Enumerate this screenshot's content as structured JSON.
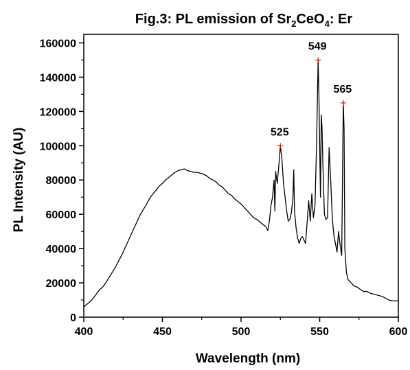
{
  "chart_data": {
    "type": "line",
    "title": {
      "prefix": "Fig.3: PL emission of Sr",
      "sub1": "2",
      "mid": "CeO",
      "sub2": "4",
      "suffix": ": Er"
    },
    "xlabel": "Wavelength (nm)",
    "ylabel": "PL Intensity (AU)",
    "xlim": [
      400,
      600
    ],
    "ylim": [
      0,
      165000
    ],
    "x_ticks": [
      400,
      450,
      500,
      550,
      600
    ],
    "y_ticks": [
      0,
      20000,
      40000,
      60000,
      80000,
      100000,
      120000,
      140000,
      160000
    ],
    "grid": false,
    "series": [
      {
        "color": "#000000",
        "points": [
          [
            400,
            6000
          ],
          [
            402,
            7500
          ],
          [
            404,
            9000
          ],
          [
            406,
            11000
          ],
          [
            408,
            13500
          ],
          [
            410,
            16000
          ],
          [
            412,
            17500
          ],
          [
            414,
            20000
          ],
          [
            416,
            23000
          ],
          [
            418,
            26000
          ],
          [
            420,
            29000
          ],
          [
            422,
            32500
          ],
          [
            424,
            36000
          ],
          [
            426,
            40000
          ],
          [
            428,
            44000
          ],
          [
            430,
            48000
          ],
          [
            432,
            52000
          ],
          [
            434,
            56000
          ],
          [
            436,
            60000
          ],
          [
            438,
            63000
          ],
          [
            440,
            66000
          ],
          [
            442,
            69500
          ],
          [
            444,
            72000
          ],
          [
            446,
            74000
          ],
          [
            448,
            76500
          ],
          [
            450,
            78000
          ],
          [
            452,
            80000
          ],
          [
            454,
            81500
          ],
          [
            456,
            83000
          ],
          [
            458,
            84500
          ],
          [
            460,
            85500
          ],
          [
            462,
            86000
          ],
          [
            464,
            86500
          ],
          [
            466,
            85500
          ],
          [
            468,
            85000
          ],
          [
            470,
            84500
          ],
          [
            472,
            84500
          ],
          [
            474,
            84000
          ],
          [
            476,
            83500
          ],
          [
            478,
            82500
          ],
          [
            480,
            81000
          ],
          [
            482,
            80000
          ],
          [
            484,
            79000
          ],
          [
            486,
            77000
          ],
          [
            488,
            76000
          ],
          [
            490,
            74000
          ],
          [
            492,
            72000
          ],
          [
            494,
            71000
          ],
          [
            496,
            69000
          ],
          [
            498,
            67500
          ],
          [
            500,
            66000
          ],
          [
            502,
            64000
          ],
          [
            504,
            62000
          ],
          [
            506,
            60000
          ],
          [
            508,
            58000
          ],
          [
            510,
            57000
          ],
          [
            512,
            55500
          ],
          [
            514,
            54000
          ],
          [
            516,
            52500
          ],
          [
            517,
            50500
          ],
          [
            518,
            56000
          ],
          [
            519,
            65000
          ],
          [
            520,
            70000
          ],
          [
            521,
            80000
          ],
          [
            521.5,
            62000
          ],
          [
            522,
            85000
          ],
          [
            523,
            78000
          ],
          [
            524,
            88000
          ],
          [
            525,
            100000
          ],
          [
            526,
            92000
          ],
          [
            527,
            78000
          ],
          [
            528,
            70000
          ],
          [
            529,
            62000
          ],
          [
            530,
            56000
          ],
          [
            531,
            57000
          ],
          [
            532,
            61000
          ],
          [
            533,
            70000
          ],
          [
            533.5,
            86000
          ],
          [
            534,
            62000
          ],
          [
            535,
            52000
          ],
          [
            536,
            46000
          ],
          [
            537,
            43000
          ],
          [
            538,
            46000
          ],
          [
            539,
            47000
          ],
          [
            540,
            45000
          ],
          [
            541,
            43000
          ],
          [
            542,
            55000
          ],
          [
            543,
            68000
          ],
          [
            544,
            56000
          ],
          [
            545,
            72000
          ],
          [
            546,
            58000
          ],
          [
            547,
            65000
          ],
          [
            548,
            100000
          ],
          [
            549,
            150000
          ],
          [
            549.5,
            130000
          ],
          [
            550,
            100000
          ],
          [
            550.5,
            70000
          ],
          [
            551,
            118000
          ],
          [
            551.5,
            110000
          ],
          [
            552,
            90000
          ],
          [
            553,
            60000
          ],
          [
            554,
            57000
          ],
          [
            555,
            58000
          ],
          [
            556,
            99000
          ],
          [
            557,
            80000
          ],
          [
            558,
            58000
          ],
          [
            559,
            48000
          ],
          [
            560,
            43000
          ],
          [
            561,
            38000
          ],
          [
            562,
            50000
          ],
          [
            563,
            42000
          ],
          [
            564,
            36000
          ],
          [
            565,
            125000
          ],
          [
            565.5,
            110000
          ],
          [
            566,
            40000
          ],
          [
            567,
            26000
          ],
          [
            568,
            22000
          ],
          [
            570,
            20000
          ],
          [
            572,
            18000
          ],
          [
            574,
            17500
          ],
          [
            576,
            16000
          ],
          [
            578,
            15000
          ],
          [
            580,
            15000
          ],
          [
            582,
            14000
          ],
          [
            584,
            13500
          ],
          [
            586,
            13000
          ],
          [
            588,
            12500
          ],
          [
            590,
            12000
          ],
          [
            592,
            11000
          ],
          [
            594,
            10000
          ],
          [
            596,
            9500
          ],
          [
            598,
            9500
          ],
          [
            600,
            9500
          ]
        ]
      }
    ],
    "annotations": [
      {
        "text": "525",
        "x": 525,
        "y": 100000,
        "marker_color": "#ff0000"
      },
      {
        "text": "549",
        "x": 549,
        "y": 150000,
        "marker_color": "#ff0000"
      },
      {
        "text": "565",
        "x": 565,
        "y": 125000,
        "marker_color": "#ff0000"
      }
    ]
  }
}
